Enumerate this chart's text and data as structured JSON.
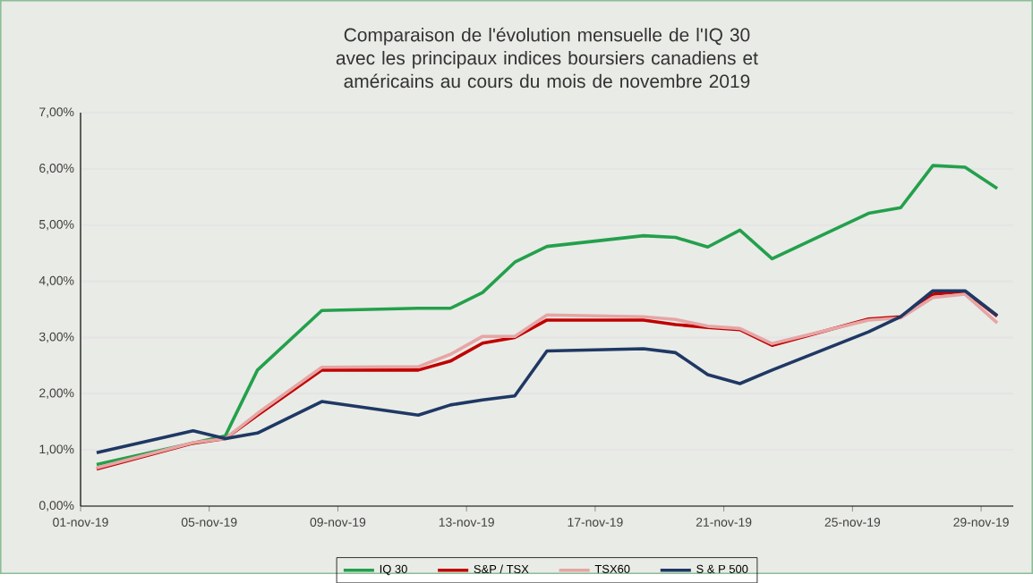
{
  "chart_data": {
    "type": "line",
    "title": "Comparaison de l'évolution mensuelle de l'IQ 30 avec les principaux indices boursiers canadiens et américains au cours du mois de novembre 2019",
    "x": [
      "2019-11-01T12:00",
      "2019-11-04T12:00",
      "2019-11-05T12:00",
      "2019-11-06T12:00",
      "2019-11-08T12:00",
      "2019-11-11T12:00",
      "2019-11-12T12:00",
      "2019-11-13T12:00",
      "2019-11-14T12:00",
      "2019-11-15T12:00",
      "2019-11-18T12:00",
      "2019-11-19T12:00",
      "2019-11-20T12:00",
      "2019-11-21T12:00",
      "2019-11-22T12:00",
      "2019-11-25T12:00",
      "2019-11-26T12:00",
      "2019-11-27T12:00",
      "2019-11-28T12:00",
      "2019-11-29T12:00"
    ],
    "series": [
      {
        "name": "IQ 30",
        "color": "#23a04c",
        "values": [
          0.74,
          null,
          1.25,
          2.42,
          3.48,
          3.52,
          3.52,
          3.8,
          4.34,
          4.62,
          4.81,
          4.78,
          4.61,
          4.91,
          4.4,
          5.21,
          5.31,
          6.06,
          6.03,
          5.65
        ]
      },
      {
        "name": "S&P / TSX",
        "color": "#c00000",
        "values": [
          0.66,
          1.12,
          1.2,
          1.62,
          2.42,
          2.42,
          2.58,
          2.9,
          3.0,
          3.31,
          3.31,
          3.23,
          3.18,
          3.14,
          2.86,
          3.33,
          3.37,
          3.77,
          3.82,
          3.38
        ]
      },
      {
        "name": "TSX60",
        "color": "#e6a5a5",
        "values": [
          0.68,
          1.13,
          1.2,
          1.65,
          2.47,
          2.48,
          2.7,
          3.02,
          3.02,
          3.4,
          3.37,
          3.32,
          3.2,
          3.16,
          2.89,
          3.31,
          3.35,
          3.71,
          3.77,
          3.26
        ]
      },
      {
        "name": "S & P 500",
        "color": "#1f3864",
        "values": [
          0.95,
          1.34,
          1.2,
          1.3,
          1.86,
          1.62,
          1.8,
          1.89,
          1.96,
          2.76,
          2.8,
          2.73,
          2.34,
          2.18,
          2.42,
          3.1,
          3.37,
          3.83,
          3.83,
          3.39
        ]
      }
    ],
    "xlim": [
      "2019-11-01",
      "2019-11-30"
    ],
    "xticks": [
      {
        "value": "2019-11-01",
        "label": "01-nov-19"
      },
      {
        "value": "2019-11-05",
        "label": "05-nov-19"
      },
      {
        "value": "2019-11-09",
        "label": "09-nov-19"
      },
      {
        "value": "2019-11-13",
        "label": "13-nov-19"
      },
      {
        "value": "2019-11-17",
        "label": "17-nov-19"
      },
      {
        "value": "2019-11-21",
        "label": "21-nov-19"
      },
      {
        "value": "2019-11-25",
        "label": "25-nov-19"
      },
      {
        "value": "2019-11-29",
        "label": "29-nov-19"
      }
    ],
    "ylim": [
      0,
      7
    ],
    "yticks": [
      {
        "value": 0,
        "label": "0,00%"
      },
      {
        "value": 1,
        "label": "1,00%"
      },
      {
        "value": 2,
        "label": "2,00%"
      },
      {
        "value": 3,
        "label": "3,00%"
      },
      {
        "value": 4,
        "label": "4,00%"
      },
      {
        "value": 5,
        "label": "5,00%"
      },
      {
        "value": 6,
        "label": "6,00%"
      },
      {
        "value": 7,
        "label": "7,00%"
      }
    ],
    "grid": "y",
    "legend": "bottom",
    "marker": "none",
    "line_style": "solid"
  }
}
